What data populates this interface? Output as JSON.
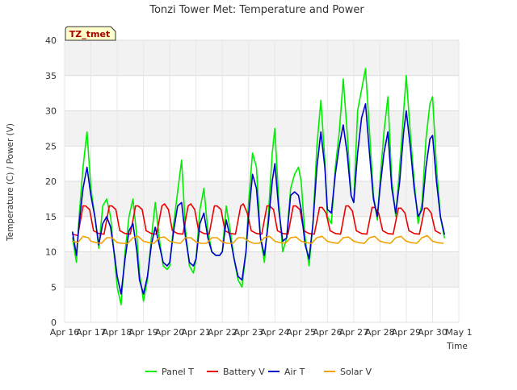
{
  "chart_data": {
    "type": "line",
    "title": "Tonzi Tower Met: Temperature and Power",
    "badge": "TZ_tmet",
    "xlabel": "Time",
    "ylabel": "Temperature (C) / Power (V)",
    "ylim": [
      0,
      40
    ],
    "yticks": [
      0,
      5,
      10,
      15,
      20,
      25,
      30,
      35,
      40
    ],
    "xlim": [
      0,
      15
    ],
    "xtick_labels": [
      "Apr 16",
      "Apr 17",
      "Apr 18",
      "Apr 19",
      "Apr 20",
      "Apr 21",
      "Apr 22",
      "Apr 23",
      "Apr 24",
      "Apr 25",
      "Apr 26",
      "Apr 27",
      "Apr 28",
      "Apr 29",
      "Apr 30",
      "May 1"
    ],
    "x_units": "days since Apr 16",
    "grid": true,
    "legend_position": "bottom",
    "series": [
      {
        "name": "Panel T",
        "color": "#00ee00",
        "x": [
          0.3,
          0.45,
          0.55,
          0.7,
          0.85,
          1.0,
          1.15,
          1.3,
          1.45,
          1.6,
          1.75,
          1.9,
          2.0,
          2.15,
          2.3,
          2.45,
          2.6,
          2.75,
          2.85,
          3.0,
          3.15,
          3.3,
          3.45,
          3.6,
          3.75,
          3.9,
          4.0,
          4.15,
          4.3,
          4.45,
          4.6,
          4.75,
          4.9,
          5.0,
          5.15,
          5.3,
          5.45,
          5.6,
          5.75,
          5.9,
          6.0,
          6.15,
          6.3,
          6.45,
          6.6,
          6.75,
          6.9,
          7.0,
          7.15,
          7.3,
          7.45,
          7.6,
          7.75,
          7.9,
          8.0,
          8.15,
          8.3,
          8.45,
          8.6,
          8.75,
          8.9,
          9.0,
          9.15,
          9.3,
          9.45,
          9.6,
          9.75,
          9.9,
          10.0,
          10.15,
          10.3,
          10.45,
          10.6,
          10.75,
          10.9,
          11.0,
          11.15,
          11.3,
          11.45,
          11.6,
          11.75,
          11.9,
          12.0,
          12.15,
          12.3,
          12.45,
          12.6,
          12.75,
          12.9,
          13.0,
          13.15,
          13.3,
          13.45,
          13.6,
          13.75,
          13.9,
          14.0,
          14.15,
          14.3,
          14.45
        ],
        "y": [
          12.0,
          8.5,
          15.0,
          22.0,
          27.0,
          19.0,
          15.0,
          10.5,
          16.5,
          17.5,
          15.0,
          9.0,
          5.0,
          2.5,
          10.0,
          15.0,
          17.5,
          12.0,
          7.0,
          3.0,
          6.0,
          12.0,
          17.0,
          12.0,
          8.0,
          7.5,
          8.0,
          14.0,
          18.5,
          23.0,
          13.0,
          8.0,
          7.0,
          9.0,
          16.0,
          19.0,
          13.0,
          10.0,
          9.5,
          9.5,
          10.0,
          16.5,
          13.0,
          9.0,
          6.0,
          5.0,
          10.0,
          17.0,
          24.0,
          22.0,
          12.0,
          8.5,
          15.0,
          24.0,
          27.5,
          17.0,
          10.0,
          12.0,
          19.0,
          21.0,
          22.0,
          20.0,
          12.0,
          8.0,
          14.0,
          25.0,
          31.5,
          23.0,
          15.0,
          14.0,
          22.0,
          27.0,
          34.5,
          27.0,
          18.0,
          17.0,
          30.0,
          33.0,
          36.0,
          27.0,
          18.0,
          14.5,
          20.0,
          27.0,
          32.0,
          20.0,
          15.0,
          22.0,
          30.0,
          35.0,
          27.0,
          20.0,
          14.0,
          17.0,
          26.0,
          31.0,
          32.0,
          22.0,
          15.0,
          12.0
        ]
      },
      {
        "name": "Battery V",
        "color": "#ee0000",
        "x": [
          0.3,
          0.5,
          0.7,
          0.8,
          0.95,
          1.1,
          1.3,
          1.5,
          1.7,
          1.8,
          1.95,
          2.1,
          2.3,
          2.5,
          2.7,
          2.8,
          2.95,
          3.1,
          3.3,
          3.5,
          3.7,
          3.8,
          3.95,
          4.1,
          4.3,
          4.5,
          4.7,
          4.8,
          4.95,
          5.1,
          5.3,
          5.5,
          5.7,
          5.8,
          5.95,
          6.1,
          6.3,
          6.5,
          6.7,
          6.8,
          6.95,
          7.1,
          7.3,
          7.5,
          7.7,
          7.8,
          7.95,
          8.1,
          8.3,
          8.5,
          8.7,
          8.8,
          8.95,
          9.1,
          9.3,
          9.5,
          9.7,
          9.8,
          9.95,
          10.1,
          10.3,
          10.5,
          10.7,
          10.8,
          10.95,
          11.1,
          11.3,
          11.5,
          11.7,
          11.8,
          11.95,
          12.1,
          12.3,
          12.5,
          12.7,
          12.8,
          12.95,
          13.1,
          13.3,
          13.5,
          13.7,
          13.8,
          13.95,
          14.1,
          14.3
        ],
        "y": [
          12.5,
          12.3,
          16.5,
          16.5,
          16.0,
          13.0,
          12.6,
          12.5,
          16.5,
          16.5,
          16.0,
          13.0,
          12.6,
          12.5,
          16.5,
          16.5,
          16.0,
          13.0,
          12.6,
          12.5,
          16.5,
          16.8,
          16.0,
          13.0,
          12.6,
          12.5,
          16.5,
          16.8,
          16.0,
          13.0,
          12.6,
          12.5,
          16.5,
          16.5,
          16.0,
          13.0,
          12.6,
          12.5,
          16.5,
          16.8,
          15.5,
          13.0,
          12.6,
          12.5,
          16.5,
          16.5,
          16.0,
          13.0,
          12.6,
          12.5,
          16.5,
          16.5,
          16.0,
          13.0,
          12.6,
          12.5,
          16.3,
          16.3,
          15.5,
          13.0,
          12.6,
          12.5,
          16.5,
          16.5,
          15.8,
          13.0,
          12.6,
          12.5,
          16.3,
          16.3,
          15.5,
          13.0,
          12.6,
          12.5,
          16.2,
          16.2,
          15.5,
          13.0,
          12.6,
          12.5,
          16.2,
          16.2,
          15.5,
          13.0,
          12.6
        ]
      },
      {
        "name": "Air T",
        "color": "#0000cc",
        "x": [
          0.3,
          0.45,
          0.55,
          0.7,
          0.85,
          1.0,
          1.15,
          1.3,
          1.45,
          1.6,
          1.75,
          1.9,
          2.0,
          2.15,
          2.3,
          2.45,
          2.6,
          2.75,
          2.85,
          3.0,
          3.15,
          3.3,
          3.45,
          3.6,
          3.75,
          3.9,
          4.0,
          4.15,
          4.3,
          4.45,
          4.6,
          4.75,
          4.9,
          5.0,
          5.15,
          5.3,
          5.45,
          5.6,
          5.75,
          5.9,
          6.0,
          6.15,
          6.3,
          6.45,
          6.6,
          6.75,
          6.9,
          7.0,
          7.15,
          7.3,
          7.45,
          7.6,
          7.75,
          7.9,
          8.0,
          8.15,
          8.3,
          8.45,
          8.6,
          8.75,
          8.9,
          9.0,
          9.15,
          9.3,
          9.45,
          9.6,
          9.75,
          9.9,
          10.0,
          10.15,
          10.3,
          10.45,
          10.6,
          10.75,
          10.9,
          11.0,
          11.15,
          11.3,
          11.45,
          11.6,
          11.75,
          11.9,
          12.0,
          12.15,
          12.3,
          12.45,
          12.6,
          12.75,
          12.9,
          13.0,
          13.15,
          13.3,
          13.45,
          13.6,
          13.75,
          13.9,
          14.0,
          14.15,
          14.3,
          14.45
        ],
        "y": [
          12.8,
          9.5,
          14.0,
          19.0,
          22.0,
          18.0,
          15.0,
          11.0,
          14.0,
          15.0,
          13.5,
          9.5,
          6.5,
          4.0,
          9.0,
          13.0,
          14.0,
          10.0,
          6.0,
          4.0,
          6.5,
          11.0,
          13.5,
          11.0,
          8.5,
          8.0,
          8.5,
          13.0,
          16.5,
          17.0,
          12.0,
          8.5,
          8.0,
          9.0,
          14.0,
          15.5,
          12.0,
          10.0,
          9.5,
          9.5,
          10.0,
          14.5,
          12.0,
          9.0,
          6.5,
          6.0,
          10.0,
          15.0,
          21.0,
          19.0,
          12.0,
          9.5,
          14.0,
          20.0,
          22.5,
          16.0,
          11.5,
          12.0,
          18.0,
          18.5,
          18.0,
          16.0,
          11.0,
          9.0,
          14.0,
          22.0,
          27.0,
          22.0,
          16.0,
          15.5,
          21.0,
          25.0,
          28.0,
          24.0,
          18.0,
          17.0,
          24.0,
          29.0,
          31.0,
          24.0,
          17.5,
          15.0,
          19.0,
          24.0,
          27.0,
          19.0,
          15.5,
          20.0,
          27.0,
          30.0,
          25.0,
          19.0,
          15.0,
          16.0,
          22.0,
          26.0,
          26.5,
          20.0,
          15.0,
          12.5
        ]
      },
      {
        "name": "Solar V",
        "color": "#f0a000",
        "x": [
          0.3,
          0.5,
          0.7,
          0.9,
          1.0,
          1.2,
          1.4,
          1.6,
          1.8,
          2.0,
          2.2,
          2.4,
          2.6,
          2.8,
          3.0,
          3.2,
          3.4,
          3.6,
          3.8,
          4.0,
          4.2,
          4.4,
          4.6,
          4.8,
          5.0,
          5.2,
          5.4,
          5.6,
          5.8,
          6.0,
          6.2,
          6.4,
          6.6,
          6.8,
          7.0,
          7.2,
          7.4,
          7.6,
          7.8,
          8.0,
          8.2,
          8.4,
          8.6,
          8.8,
          9.0,
          9.2,
          9.4,
          9.6,
          9.8,
          10.0,
          10.2,
          10.4,
          10.6,
          10.8,
          11.0,
          11.2,
          11.4,
          11.6,
          11.8,
          12.0,
          12.2,
          12.4,
          12.6,
          12.8,
          13.0,
          13.2,
          13.4,
          13.6,
          13.8,
          14.0,
          14.2,
          14.4
        ],
        "y": [
          11.5,
          11.3,
          12.2,
          12.0,
          11.5,
          11.3,
          11.2,
          12.0,
          12.0,
          11.3,
          11.2,
          11.2,
          12.0,
          12.2,
          11.5,
          11.3,
          11.2,
          12.0,
          12.1,
          11.5,
          11.3,
          11.2,
          12.0,
          12.0,
          11.4,
          11.2,
          11.2,
          12.0,
          12.0,
          11.4,
          11.2,
          11.2,
          12.0,
          12.0,
          11.5,
          11.2,
          11.2,
          12.0,
          12.2,
          11.5,
          11.3,
          11.2,
          12.0,
          12.1,
          11.5,
          11.3,
          11.2,
          12.0,
          12.2,
          11.5,
          11.3,
          11.2,
          12.0,
          12.1,
          11.5,
          11.3,
          11.2,
          12.0,
          12.2,
          11.5,
          11.3,
          11.2,
          12.0,
          12.2,
          11.5,
          11.3,
          11.2,
          12.0,
          12.3,
          11.5,
          11.3,
          11.2
        ]
      }
    ]
  }
}
